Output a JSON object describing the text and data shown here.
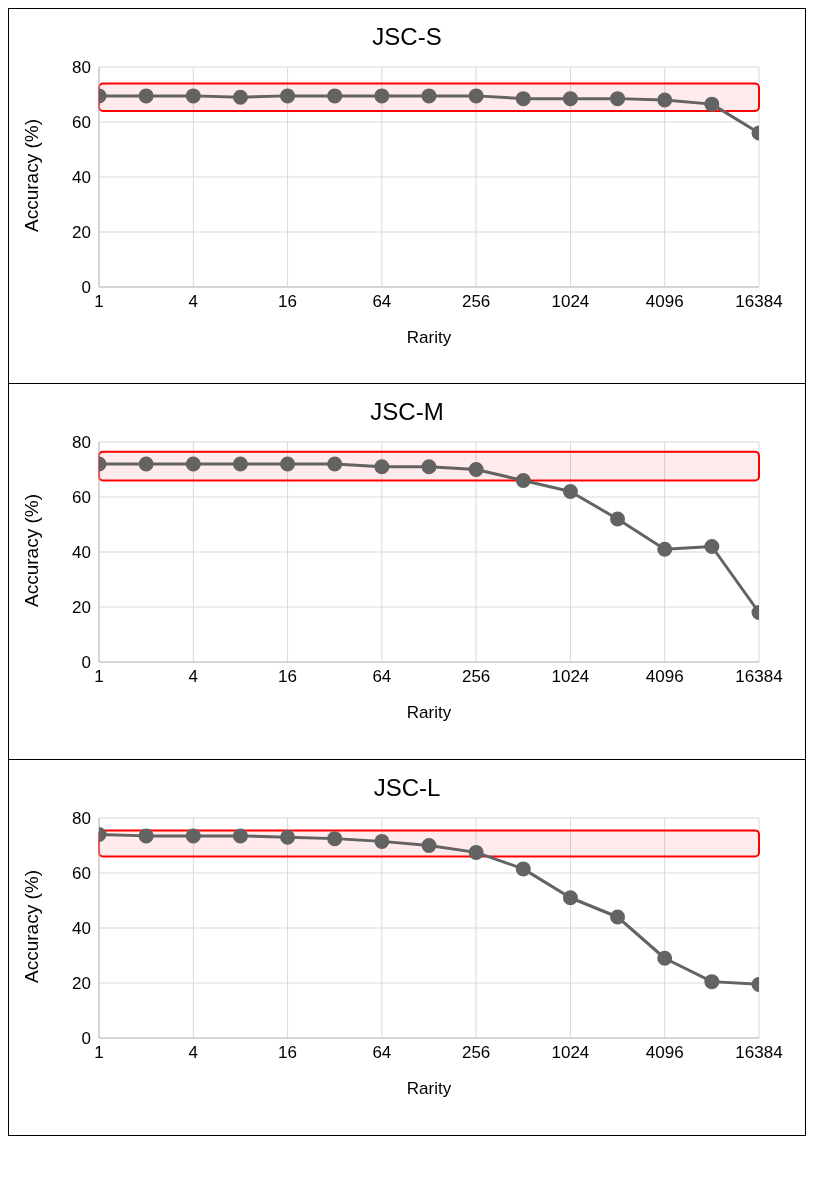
{
  "chart_data": [
    {
      "type": "line",
      "title": "JSC-S",
      "xlabel": "Rarity",
      "ylabel": "Accuracy (%)",
      "log": "x",
      "grid": true,
      "marker": "circle",
      "line_style": "solid",
      "x": [
        1,
        2,
        4,
        8,
        16,
        32,
        64,
        128,
        256,
        512,
        1024,
        2048,
        4096,
        8192,
        16384
      ],
      "series": [
        {
          "color": "#636363",
          "values": [
            69.5,
            69.5,
            69.5,
            69,
            69.5,
            69.5,
            69.5,
            69.5,
            69.5,
            68.5,
            68.5,
            68.5,
            68,
            66.5,
            56
          ]
        }
      ],
      "xlim": [
        1,
        16384
      ],
      "xticks": [
        1,
        4,
        16,
        64,
        256,
        1024,
        4096,
        16384
      ],
      "ylim": [
        0,
        80
      ],
      "yticks": [
        0,
        20,
        40,
        60,
        80
      ],
      "bands": [
        {
          "axis": "y",
          "from": 64,
          "to": 74,
          "color": "#ff0000"
        }
      ]
    },
    {
      "type": "line",
      "title": "JSC-M",
      "xlabel": "Rarity",
      "ylabel": "Accuracy (%)",
      "log": "x",
      "grid": true,
      "marker": "circle",
      "line_style": "solid",
      "x": [
        1,
        2,
        4,
        8,
        16,
        32,
        64,
        128,
        256,
        512,
        1024,
        2048,
        4096,
        8192,
        16384
      ],
      "series": [
        {
          "color": "#636363",
          "values": [
            72,
            72,
            72,
            72,
            72,
            72,
            71,
            71,
            70,
            66,
            62,
            52,
            41,
            42,
            18
          ]
        }
      ],
      "xlim": [
        1,
        16384
      ],
      "xticks": [
        1,
        4,
        16,
        64,
        256,
        1024,
        4096,
        16384
      ],
      "ylim": [
        0,
        80
      ],
      "yticks": [
        0,
        20,
        40,
        60,
        80
      ],
      "bands": [
        {
          "axis": "y",
          "from": 66,
          "to": 76.5,
          "color": "#ff0000"
        }
      ]
    },
    {
      "type": "line",
      "title": "JSC-L",
      "xlabel": "Rarity",
      "ylabel": "Accuracy (%)",
      "log": "x",
      "grid": true,
      "marker": "circle",
      "line_style": "solid",
      "x": [
        1,
        2,
        4,
        8,
        16,
        32,
        64,
        128,
        256,
        512,
        1024,
        2048,
        4096,
        8192,
        16384
      ],
      "series": [
        {
          "color": "#636363",
          "values": [
            74,
            73.5,
            73.5,
            73.5,
            73,
            72.5,
            71.5,
            70,
            67.5,
            61.5,
            51,
            44,
            29,
            20.5,
            19.5
          ]
        }
      ],
      "xlim": [
        1,
        16384
      ],
      "xticks": [
        1,
        4,
        16,
        64,
        256,
        1024,
        4096,
        16384
      ],
      "ylim": [
        0,
        80
      ],
      "yticks": [
        0,
        20,
        40,
        60,
        80
      ],
      "bands": [
        {
          "axis": "y",
          "from": 66,
          "to": 75.5,
          "color": "#ff0000"
        }
      ]
    }
  ]
}
